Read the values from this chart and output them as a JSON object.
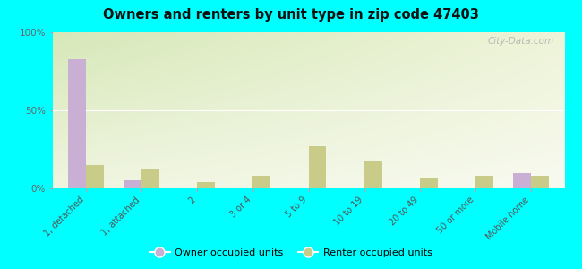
{
  "title": "Owners and renters by unit type in zip code 47403",
  "categories": [
    "1, detached",
    "1, attached",
    "2",
    "3 or 4",
    "5 to 9",
    "10 to 19",
    "20 to 49",
    "50 or more",
    "Mobile home"
  ],
  "owner_values": [
    83,
    5,
    0,
    0,
    0,
    0,
    0,
    0,
    10
  ],
  "renter_values": [
    15,
    12,
    4,
    8,
    27,
    17,
    7,
    8,
    8
  ],
  "owner_color": "#c9afd4",
  "renter_color": "#c8cc88",
  "bg_color_topleft": "#d6e8b8",
  "bg_color_topright": "#e8f0d0",
  "bg_color_bottom": "#f0f5e0",
  "outer_bg": "#00ffff",
  "ylim": [
    0,
    100
  ],
  "yticks": [
    0,
    50,
    100
  ],
  "ytick_labels": [
    "0%",
    "50%",
    "100%"
  ],
  "bar_width": 0.32,
  "legend_owner": "Owner occupied units",
  "legend_renter": "Renter occupied units",
  "watermark": "City-Data.com"
}
